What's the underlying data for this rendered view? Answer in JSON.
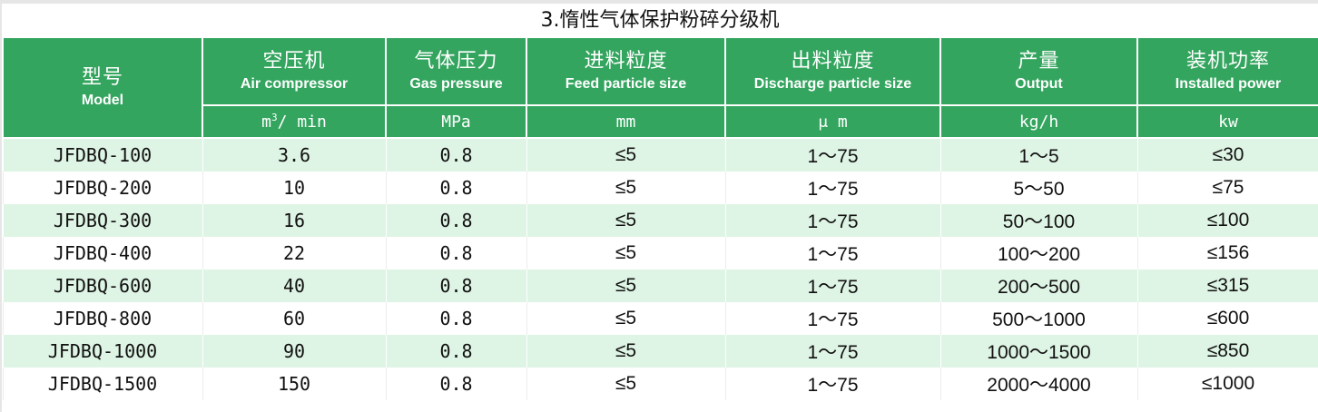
{
  "title": "3.惰性气体保护粉碎分级机",
  "colors": {
    "header_bg": "#34a55f",
    "row_alt_bg": "#def4e4",
    "header_text": "#ffffff"
  },
  "columns": [
    {
      "cn": "型号",
      "en": "Model",
      "unit": null
    },
    {
      "cn": "空压机",
      "en": "Air compressor",
      "unit": "m",
      "unit_sup": "3",
      "unit_tail": "/ min"
    },
    {
      "cn": "气体压力",
      "en": "Gas pressure",
      "unit": "MPa"
    },
    {
      "cn": "进料粒度",
      "en": "Feed particle size",
      "unit": "mm"
    },
    {
      "cn": "出料粒度",
      "en": "Discharge particle size",
      "unit": "μ m"
    },
    {
      "cn": "产量",
      "en": "Output",
      "unit": "kg/h"
    },
    {
      "cn": "装机功率",
      "en": "Installed power",
      "unit": "kw"
    }
  ],
  "rows": [
    [
      "JFDBQ-100",
      "3.6",
      "0.8",
      "≤5",
      "1～75",
      "1～5",
      "≤30"
    ],
    [
      "JFDBQ-200",
      "10",
      "0.8",
      "≤5",
      "1～75",
      "5～50",
      "≤75"
    ],
    [
      "JFDBQ-300",
      "16",
      "0.8",
      "≤5",
      "1～75",
      "50～100",
      "≤100"
    ],
    [
      "JFDBQ-400",
      "22",
      "0.8",
      "≤5",
      "1～75",
      "100～200",
      "≤156"
    ],
    [
      "JFDBQ-600",
      "40",
      "0.8",
      "≤5",
      "1～75",
      "200～500",
      "≤315"
    ],
    [
      "JFDBQ-800",
      "60",
      "0.8",
      "≤5",
      "1～75",
      "500～1000",
      "≤600"
    ],
    [
      "JFDBQ-1000",
      "90",
      "0.8",
      "≤5",
      "1～75",
      "1000～1500",
      "≤850"
    ],
    [
      "JFDBQ-1500",
      "150",
      "0.8",
      "≤5",
      "1～75",
      "2000～4000",
      "≤1000"
    ]
  ]
}
